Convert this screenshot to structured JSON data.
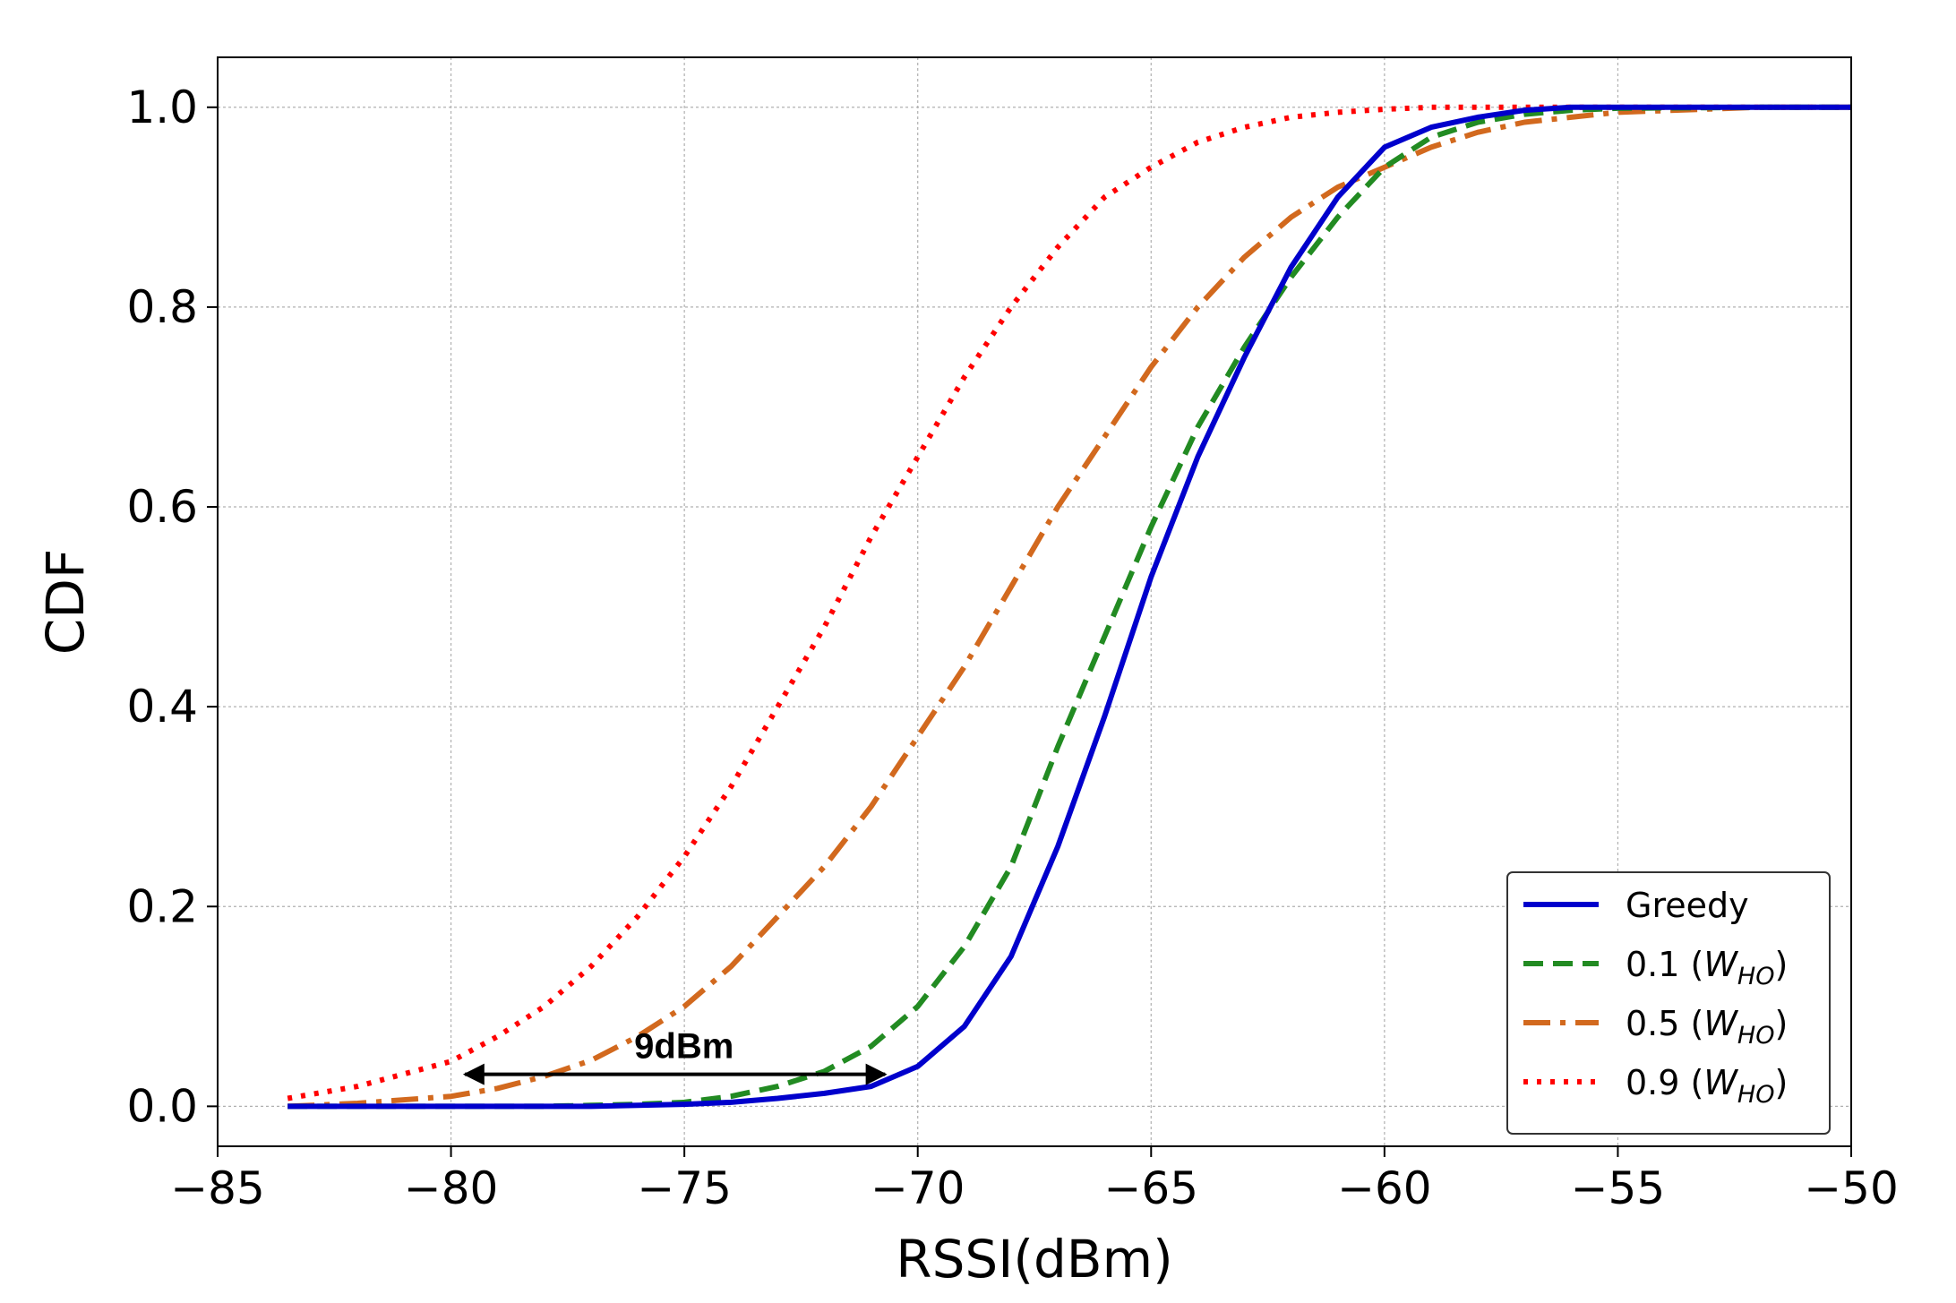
{
  "chart_data": {
    "type": "line",
    "title": "",
    "xlabel": "RSSI(dBm)",
    "ylabel": "CDF",
    "xlim": [
      -85,
      -50
    ],
    "ylim": [
      -0.04,
      1.05
    ],
    "grid": true,
    "legend_location": "lower-right",
    "x_ticks": [
      -85,
      -80,
      -75,
      -70,
      -65,
      -60,
      -55,
      -50
    ],
    "x_tick_labels": [
      "−85",
      "−80",
      "−75",
      "−70",
      "−65",
      "−60",
      "−55",
      "−50"
    ],
    "y_ticks": [
      0.0,
      0.2,
      0.4,
      0.6,
      0.8,
      1.0
    ],
    "y_tick_labels": [
      "0.0",
      "0.2",
      "0.4",
      "0.6",
      "0.8",
      "1.0"
    ],
    "x": [
      -83.5,
      -82,
      -80,
      -79,
      -78,
      -77,
      -76,
      -75,
      -74,
      -73,
      -72,
      -71,
      -70,
      -69,
      -68,
      -67,
      -66,
      -65,
      -64,
      -63,
      -62,
      -61,
      -60,
      -59,
      -58,
      -57,
      -56,
      -55,
      -52,
      -50
    ],
    "series": [
      {
        "name": "Greedy",
        "color": "#0000cc",
        "style": "solid",
        "values": [
          0.0,
          0.0,
          0.0,
          0.0,
          0.0,
          0.0,
          0.001,
          0.002,
          0.004,
          0.008,
          0.013,
          0.02,
          0.04,
          0.08,
          0.15,
          0.26,
          0.39,
          0.53,
          0.65,
          0.75,
          0.84,
          0.91,
          0.96,
          0.98,
          0.99,
          0.997,
          1.0,
          1.0,
          1.0,
          1.0
        ]
      },
      {
        "name": "0.1",
        "subscript": "HO",
        "color": "#228b22",
        "style": "dashed",
        "values": [
          0.0,
          0.0,
          0.0,
          0.0,
          0.0,
          0.001,
          0.002,
          0.004,
          0.01,
          0.02,
          0.035,
          0.06,
          0.1,
          0.16,
          0.24,
          0.36,
          0.47,
          0.58,
          0.68,
          0.76,
          0.83,
          0.89,
          0.94,
          0.97,
          0.985,
          0.993,
          0.997,
          0.999,
          1.0,
          1.0
        ]
      },
      {
        "name": "0.5",
        "subscript": "HO",
        "color": "#d2691e",
        "style": "dashdot",
        "values": [
          0.0,
          0.003,
          0.01,
          0.018,
          0.03,
          0.046,
          0.07,
          0.1,
          0.14,
          0.19,
          0.24,
          0.3,
          0.37,
          0.44,
          0.52,
          0.6,
          0.67,
          0.74,
          0.8,
          0.85,
          0.89,
          0.92,
          0.94,
          0.96,
          0.975,
          0.985,
          0.99,
          0.995,
          1.0,
          1.0
        ]
      },
      {
        "name": "0.9",
        "subscript": "HO",
        "color": "#ff0000",
        "style": "dotted",
        "values": [
          0.008,
          0.02,
          0.045,
          0.07,
          0.1,
          0.14,
          0.19,
          0.25,
          0.32,
          0.4,
          0.48,
          0.57,
          0.65,
          0.73,
          0.8,
          0.86,
          0.91,
          0.94,
          0.965,
          0.98,
          0.99,
          0.995,
          0.998,
          1.0,
          1.0,
          1.0,
          1.0,
          1.0,
          1.0,
          1.0
        ]
      }
    ],
    "legend_subscript_prefix": "W",
    "annotations": [
      {
        "text": "9dBm",
        "type": "double-arrow",
        "x_start": -79.7,
        "x_end": -70.7,
        "y": 0.032
      }
    ]
  }
}
